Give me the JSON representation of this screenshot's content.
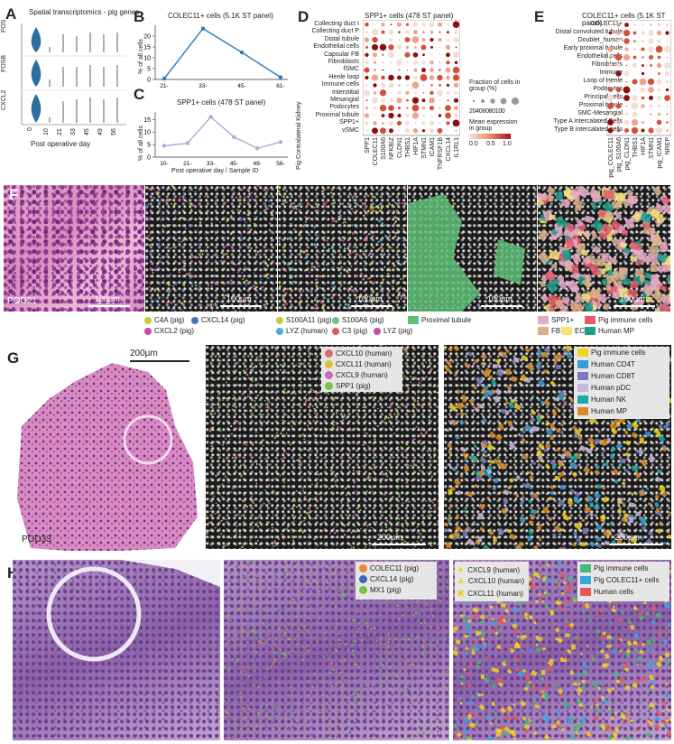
{
  "panels": {
    "A": {
      "label": "A",
      "title": "Spatial transcriptomics - pig genes",
      "genes": [
        "FOS",
        "FOSB",
        "CXCL2"
      ],
      "xlabel": "Post operative day",
      "xticks": [
        "0",
        "10",
        "21",
        "33",
        "45",
        "49",
        "56"
      ]
    },
    "B": {
      "label": "B",
      "title": "COLEC11+ cells (5.1K ST panel)",
      "ylabel": "% of all cells",
      "yticks": [
        "0",
        "5",
        "10",
        "15",
        "20"
      ],
      "xticks": [
        "21-",
        "33-",
        "45-",
        "61-"
      ]
    },
    "C": {
      "label": "C",
      "title": "SPP1+ cells (478 ST panel)",
      "ylabel": "% of all cells",
      "yticks": [
        "0",
        "5",
        "10",
        "15"
      ],
      "xticks": [
        "10-",
        "21-",
        "33-",
        "45-",
        "49-",
        "56-"
      ],
      "xlabel": "Post operative day / Sample ID"
    },
    "D": {
      "label": "D",
      "title": "SPP1+ cells (478 ST panel)",
      "side_label": "Pig Contralateral Kidney",
      "rows": [
        "Collecting duct I",
        "Collecting duct P",
        "Distal tubule",
        "Endothelial cells",
        "Capsular FB",
        "Fibroblasts",
        "fSMC",
        "Henle loop",
        "Immune cells",
        "Interstitial",
        "Mesangial",
        "Podocytes",
        "Proximal tubule",
        "SPP1+",
        "vSMC"
      ],
      "cols": [
        "SPP1",
        "COLEC11",
        "S100A6",
        "NFKBIZ",
        "CLDN1",
        "THBS1",
        "HIF1A",
        "STMN1",
        "ICAM1",
        "TNFRSF1B",
        "CXCL14",
        "IL1RL1"
      ],
      "legend_frac_title": "Fraction of cells in group (%)",
      "legend_frac_ticks": "20406080100",
      "legend_expr_title": "Mean expression in group",
      "legend_expr_ticks": [
        "0.0",
        "0.5",
        "1.0"
      ]
    },
    "E": {
      "label": "E",
      "title": "COLEC11+ cells (5.1K ST panel)",
      "rows": [
        "COLEC11+",
        "Distal convoluted tubule",
        "Doublet_human",
        "Early proximal tubule",
        "Endothelial cells",
        "Fibroblasts",
        "Immune",
        "Loop of Henle",
        "Podocytes",
        "Principal cells",
        "Proximal tubule",
        "SMC-Mesangial",
        "Type A intercalated Cells",
        "Type B intercalated cells"
      ],
      "cols": [
        "pig_COLEC11",
        "pig_S100A6",
        "pig_CLDN1",
        "THBS1",
        "HIF1A",
        "STMN1",
        "pig_ICAM1",
        "NREP"
      ]
    },
    "F": {
      "label": "F",
      "sample": "POD21",
      "scale": "100μm",
      "legend": [
        {
          "text": "C4A (pig)",
          "color": "#c9c93a"
        },
        {
          "text": "CXCL14 (pig)",
          "color": "#4a72b8"
        },
        {
          "text": "CXCL2 (pig)",
          "color": "#c64aa6"
        },
        {
          "text": "S100A11 (pig)",
          "color": "#c9c93a"
        },
        {
          "text": "S100A6 (pig)",
          "color": "#6fbf88"
        },
        {
          "text": "LYZ (human)",
          "color": "#4ab0d6"
        },
        {
          "text": "C3 (pig)",
          "color": "#e05a5a"
        },
        {
          "text": "LYZ (pig)",
          "color": "#c64aa6"
        },
        {
          "text": "Proximal tubule",
          "color": "#5fbf77"
        },
        {
          "text": "SPP1+",
          "color": "#e9a9c6"
        },
        {
          "text": "Pig immune cells",
          "color": "#e05a6a"
        },
        {
          "text": "FB",
          "color": "#d8b08a"
        },
        {
          "text": "EC",
          "color": "#f4e27a"
        },
        {
          "text": "Human MP",
          "color": "#1f9e8a"
        }
      ]
    },
    "G": {
      "label": "G",
      "sample": "POD33",
      "scale": "200μm",
      "legend1": [
        {
          "text": "CXCL10 (human)",
          "color": "#e06a6a"
        },
        {
          "text": "CXCL11 (human)",
          "color": "#d6c23a"
        },
        {
          "text": "CXCL9 (human)",
          "color": "#c86ab8"
        },
        {
          "text": "SPP1 (pig)",
          "color": "#7ac04a"
        }
      ],
      "legend2": [
        {
          "text": "Pig immune cells",
          "color": "#f2d21e"
        },
        {
          "text": "Human CD4T",
          "color": "#3a9ad6"
        },
        {
          "text": "Human CD8T",
          "color": "#7a7ab8"
        },
        {
          "text": "Human pDC",
          "color": "#c8b8dc"
        },
        {
          "text": "Human NK",
          "color": "#1aa8a8"
        },
        {
          "text": "Human MP",
          "color": "#d88a2a"
        }
      ]
    },
    "H": {
      "label": "H",
      "legend1": [
        {
          "text": "COLEC11 (pig)",
          "color": "#f08a3a"
        },
        {
          "text": "CXCL14 (pig)",
          "color": "#3a6ab8"
        },
        {
          "text": "MX1 (pig)",
          "color": "#7ac04a"
        }
      ],
      "legend2": [
        {
          "text": "CXCL9 (human)",
          "color": "#f2d21e"
        },
        {
          "text": "CXCL10 (human)",
          "color": "#f2d21e"
        },
        {
          "text": "CXCL11 (human)",
          "color": "#f2d21e"
        }
      ],
      "legend3": [
        {
          "text": "Pig immune cells",
          "color": "#4ab87a"
        },
        {
          "text": "Pig COLEC11+ cells",
          "color": "#3aa6e0"
        },
        {
          "text": "Human cells",
          "color": "#e05a5a"
        }
      ]
    }
  },
  "chart_data": [
    {
      "type": "line",
      "title": "COLEC11+ cells (5.1K ST panel)",
      "x": [
        "21-",
        "33-",
        "45-",
        "61-"
      ],
      "series": [
        {
          "values": [
            0.4,
            23.5,
            12.5,
            1.0
          ]
        }
      ],
      "ylabel": "% of all cells",
      "ylim": [
        0,
        25
      ]
    },
    {
      "type": "line",
      "title": "SPP1+ cells (478 ST panel)",
      "x": [
        "10-",
        "21-",
        "33-",
        "45-",
        "49-",
        "56-"
      ],
      "series": [
        {
          "values": [
            4.5,
            5.5,
            16,
            8,
            3.5,
            6
          ]
        }
      ],
      "ylabel": "% of all cells",
      "xlabel": "Post operative day / Sample ID",
      "ylim": [
        0,
        18
      ]
    }
  ]
}
